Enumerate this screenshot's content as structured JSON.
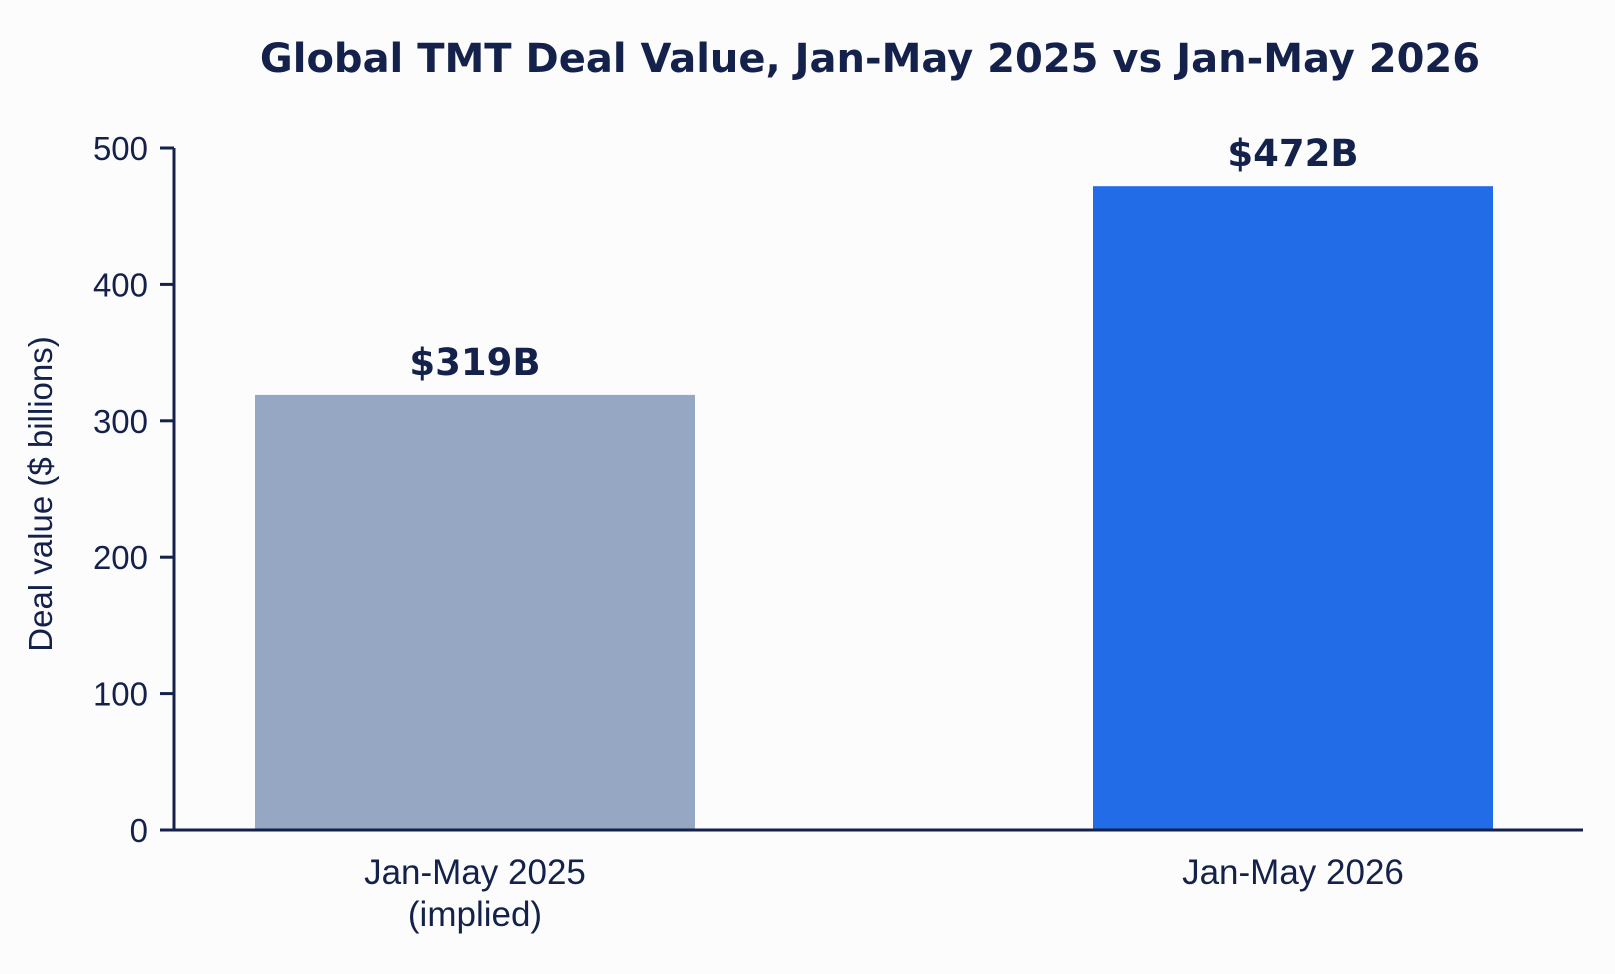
{
  "chart_data": {
    "type": "bar",
    "title": "Global TMT Deal Value, Jan-May 2025 vs Jan-May 2026",
    "xlabel": "",
    "ylabel": "Deal value ($ billions)",
    "ylim": [
      0,
      500
    ],
    "yticks": [
      0,
      100,
      200,
      300,
      400,
      500
    ],
    "ytick_labels": [
      "0",
      "100",
      "200",
      "300",
      "400",
      "500"
    ],
    "categories": [
      [
        "Jan-May 2025",
        "(implied)"
      ],
      [
        "Jan-May 2026"
      ]
    ],
    "values": [
      319,
      472
    ],
    "data_labels": [
      "$319B",
      "$472B"
    ],
    "bar_colors": [
      "#95a7c2",
      "#226ce8"
    ],
    "axis_color": "#14214a",
    "grid": false,
    "legend": "none"
  }
}
